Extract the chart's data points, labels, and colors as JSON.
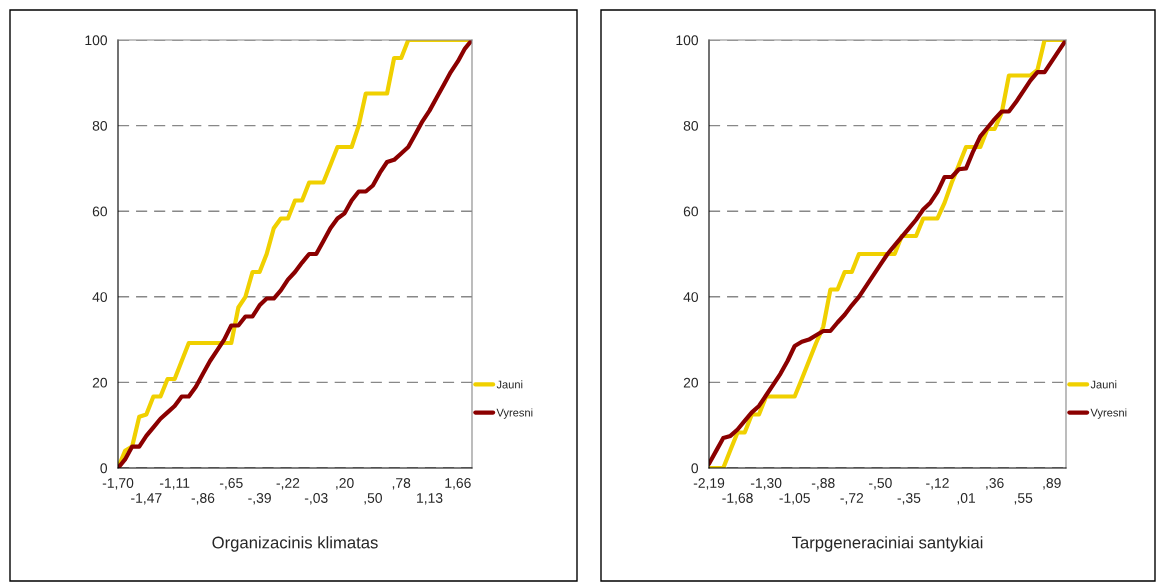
{
  "chart_data": [
    {
      "type": "line",
      "xlabel": "Organizacinis klimatas",
      "categories": [
        "-1,70",
        null,
        null,
        null,
        "-1,47",
        null,
        null,
        null,
        "-1,11",
        null,
        null,
        null,
        "-,86",
        null,
        null,
        null,
        "-,65",
        null,
        null,
        null,
        "-,39",
        null,
        null,
        null,
        "-,22",
        null,
        null,
        null,
        "-,03",
        null,
        null,
        null,
        ",20",
        null,
        null,
        null,
        ",50",
        null,
        null,
        null,
        ",78",
        null,
        null,
        null,
        "1,13",
        null,
        null,
        null,
        "1,66",
        null,
        null
      ],
      "series": [
        {
          "name": "Jauni",
          "color": "#f0d000",
          "values": [
            0,
            4,
            5,
            12,
            12.5,
            16.7,
            16.7,
            20.8,
            20.8,
            25,
            29.2,
            29.2,
            29.2,
            29.2,
            29.2,
            29.2,
            29.2,
            37.5,
            40,
            45.8,
            45.8,
            50,
            56,
            58.3,
            58.3,
            62.5,
            62.5,
            66.7,
            66.7,
            66.7,
            70.8,
            75,
            75,
            75,
            80,
            87.5,
            87.5,
            87.5,
            87.5,
            95.8,
            95.8,
            100,
            100,
            100,
            100,
            100,
            100,
            100,
            100,
            100,
            100
          ]
        },
        {
          "name": "Vyresni",
          "color": "#8b0000",
          "values": [
            0,
            2,
            5,
            5,
            7.5,
            9.5,
            11.5,
            13,
            14.5,
            16.7,
            16.7,
            19,
            22,
            25,
            27.5,
            30,
            33.3,
            33.3,
            35.4,
            35.4,
            38,
            39.6,
            39.6,
            41.5,
            44,
            45.8,
            48,
            50,
            50,
            53,
            56,
            58.3,
            59.5,
            62.5,
            64.6,
            64.6,
            66,
            69,
            71.5,
            72,
            73.5,
            75,
            78,
            81,
            83.5,
            86.5,
            89.5,
            92.5,
            95,
            98,
            100
          ]
        }
      ],
      "ylim": [
        0,
        100
      ],
      "yticks": [
        0,
        20,
        40,
        60,
        80,
        100
      ],
      "grid": "y",
      "legend": "right",
      "line_style": "solid"
    },
    {
      "type": "line",
      "xlabel": "Tarpgeneraciniai santykiai",
      "categories": [
        "-2,19",
        null,
        null,
        null,
        "-1,68",
        null,
        null,
        null,
        "-1,30",
        null,
        null,
        null,
        "-1,05",
        null,
        null,
        null,
        "-,88",
        null,
        null,
        null,
        "-,72",
        null,
        null,
        null,
        "-,50",
        null,
        null,
        null,
        "-,35",
        null,
        null,
        null,
        "-,12",
        null,
        null,
        null,
        ",01",
        null,
        null,
        null,
        ",36",
        null,
        null,
        null,
        ",55",
        null,
        null,
        null,
        ",89",
        null,
        null
      ],
      "series": [
        {
          "name": "Jauni",
          "color": "#f0d000",
          "values": [
            0,
            0,
            0,
            4.2,
            8.3,
            8.3,
            12.5,
            12.5,
            16.7,
            16.7,
            16.7,
            16.7,
            16.7,
            20.8,
            25,
            29.2,
            33,
            41.7,
            41.7,
            45.8,
            45.8,
            50,
            50,
            50,
            50,
            50,
            50,
            54.2,
            54.2,
            54.2,
            58.3,
            58.3,
            58.3,
            62,
            66.7,
            70.8,
            75,
            75,
            75,
            79.2,
            79.2,
            83,
            91.7,
            91.7,
            91.7,
            91.7,
            93,
            100,
            100,
            100,
            100
          ]
        },
        {
          "name": "Vyresni",
          "color": "#8b0000",
          "values": [
            1,
            4,
            7,
            7.5,
            9,
            11,
            13,
            14.5,
            17,
            19.5,
            22,
            25,
            28.5,
            29.5,
            30,
            31,
            32,
            32,
            34,
            35.8,
            38,
            40,
            42.5,
            45,
            47.5,
            50,
            52,
            54,
            56,
            58,
            60.4,
            62,
            64.5,
            68,
            68,
            69.8,
            70,
            74,
            77.5,
            79.5,
            81.5,
            83.3,
            83.3,
            85.5,
            88,
            90.5,
            92.5,
            92.5,
            95,
            97.5,
            100
          ]
        }
      ],
      "ylim": [
        0,
        100
      ],
      "yticks": [
        0,
        20,
        40,
        60,
        80,
        100
      ],
      "grid": "y",
      "legend": "right",
      "line_style": "solid"
    }
  ]
}
